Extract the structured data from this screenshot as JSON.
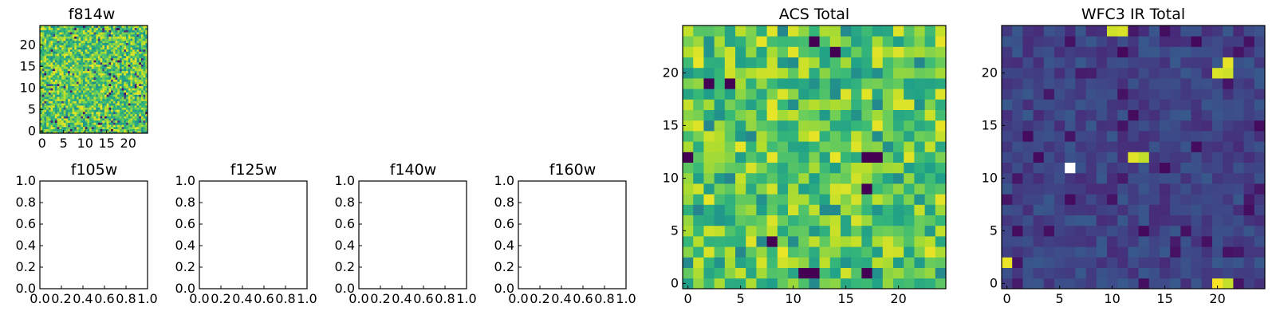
{
  "chart_data": [
    {
      "type": "heatmap",
      "title": "f814w",
      "grid": "50x50 cells spanning x and y from -0.5 to 24.5",
      "xlim": [
        -0.5,
        24.5
      ],
      "ylim": [
        -0.5,
        24.5
      ],
      "xticks": [
        0,
        5,
        10,
        15,
        20
      ],
      "yticks": [
        0,
        5,
        10,
        15,
        20
      ],
      "colormap": "viridis",
      "dominant_color": "#b5de2b",
      "min_color": "#440154",
      "max_color": "#fde725"
    },
    {
      "type": "empty",
      "title": "f105w",
      "xlim": [
        0,
        1
      ],
      "ylim": [
        0,
        1
      ],
      "xticks": [
        "0.0",
        "0.2",
        "0.4",
        "0.6",
        "0.8",
        "1.0"
      ],
      "yticks": [
        "0.0",
        "0.2",
        "0.4",
        "0.6",
        "0.8",
        "1.0"
      ]
    },
    {
      "type": "empty",
      "title": "f125w",
      "xlim": [
        0,
        1
      ],
      "ylim": [
        0,
        1
      ],
      "xticks": [
        "0.0",
        "0.2",
        "0.4",
        "0.6",
        "0.8",
        "1.0"
      ],
      "yticks": [
        "0.0",
        "0.2",
        "0.4",
        "0.6",
        "0.8",
        "1.0"
      ]
    },
    {
      "type": "empty",
      "title": "f140w",
      "xlim": [
        0,
        1
      ],
      "ylim": [
        0,
        1
      ],
      "xticks": [
        "0.0",
        "0.2",
        "0.4",
        "0.6",
        "0.8",
        "1.0"
      ],
      "yticks": [
        "0.0",
        "0.2",
        "0.4",
        "0.6",
        "0.8",
        "1.0"
      ]
    },
    {
      "type": "empty",
      "title": "f160w",
      "xlim": [
        0,
        1
      ],
      "ylim": [
        0,
        1
      ],
      "xticks": [
        "0.0",
        "0.2",
        "0.4",
        "0.6",
        "0.8",
        "1.0"
      ],
      "yticks": [
        "0.0",
        "0.2",
        "0.4",
        "0.6",
        "0.8",
        "1.0"
      ]
    },
    {
      "type": "heatmap",
      "title": "ACS Total",
      "grid": "25x25 cells spanning x and y from -0.5 to 24.5",
      "xlim": [
        -0.5,
        24.5
      ],
      "ylim": [
        -0.5,
        24.5
      ],
      "xticks": [
        0,
        5,
        10,
        15,
        20
      ],
      "yticks": [
        0,
        5,
        10,
        15,
        20
      ],
      "colormap": "viridis",
      "dominant_color": "#a0da39",
      "dark_pixels": [
        [
          0,
          12
        ],
        [
          2,
          19
        ],
        [
          12,
          23
        ],
        [
          14,
          22
        ],
        [
          8,
          4
        ],
        [
          11,
          1
        ],
        [
          12,
          1
        ],
        [
          17,
          1
        ],
        [
          17,
          9
        ],
        [
          17,
          12
        ],
        [
          18,
          12
        ],
        [
          4,
          19
        ]
      ],
      "min_color": "#440154",
      "max_color": "#fde725"
    },
    {
      "type": "heatmap",
      "title": "WFC3 IR Total",
      "grid": "25x25 cells spanning x and y from -0.5 to 24.5",
      "xlim": [
        -0.5,
        24.5
      ],
      "ylim": [
        -0.5,
        24.5
      ],
      "xticks": [
        0,
        5,
        10,
        15,
        20
      ],
      "yticks": [
        0,
        5,
        10,
        15,
        20
      ],
      "colormap": "viridis",
      "dominant_color": "#433e85",
      "bright_pixels": [
        [
          20,
          20
        ],
        [
          21,
          20
        ],
        [
          21,
          21
        ],
        [
          12,
          12
        ],
        [
          13,
          12
        ],
        [
          0,
          2
        ],
        [
          20,
          0
        ],
        [
          21,
          0
        ],
        [
          10,
          24
        ],
        [
          11,
          24
        ]
      ],
      "saturated_pixel": [
        6,
        11
      ],
      "saturated_color": "#ffffff",
      "min_color": "#440154",
      "max_color": "#fde725"
    }
  ]
}
